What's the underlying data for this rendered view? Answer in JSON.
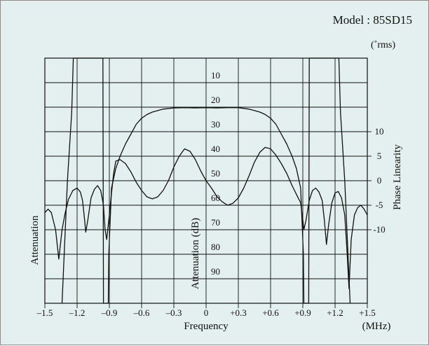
{
  "chart_data": {
    "type": "line",
    "model_label": "Model : 85SD15",
    "xlabel": "Frequency",
    "x_unit": "(MHz)",
    "ylabel_left": "Attenuation",
    "ylabel_center": "Attenuation (dB)",
    "ylabel_right": "Phase Linearity",
    "y_right_unit": "(˚rms)",
    "xlim": [
      -1.5,
      1.5
    ],
    "x_ticks": [
      -1.5,
      -1.2,
      -0.9,
      -0.6,
      -0.3,
      0,
      0.3,
      0.6,
      0.9,
      1.2,
      1.5
    ],
    "x_tick_labels": [
      "–1.5",
      "–1.2",
      "–0.9",
      "–0.6",
      "–0.3",
      "0",
      "+0.3",
      "+0.6",
      "+0.9",
      "+1.2",
      "+1.5"
    ],
    "attenuation_lim": [
      0,
      100
    ],
    "attenuation_ticks": [
      10,
      20,
      30,
      40,
      50,
      60,
      70,
      80,
      90
    ],
    "attenuation_tick_labels": [
      "10",
      "20",
      "30",
      "40",
      "50",
      "60",
      "70",
      "80",
      "90"
    ],
    "phase_lim": [
      -25,
      25
    ],
    "phase_ticks": [
      10,
      5,
      0,
      -5,
      -10
    ],
    "phase_tick_labels": [
      "10",
      "5",
      "0",
      "-5",
      "-10"
    ],
    "grid": true,
    "series": [
      {
        "role": "attenuation",
        "axis": "attenuation",
        "points": [
          [
            -1.34,
            100
          ],
          [
            -1.29,
            50
          ],
          [
            -1.25,
            22
          ],
          [
            -1.235,
            0
          ],
          [
            -0.96,
            0
          ],
          [
            -0.955,
            100
          ],
          [
            -0.91,
            100
          ],
          [
            -0.905,
            80
          ],
          [
            -0.88,
            53
          ],
          [
            -0.84,
            45
          ],
          [
            -0.8,
            40
          ],
          [
            -0.75,
            35
          ],
          [
            -0.7,
            31
          ],
          [
            -0.65,
            27
          ],
          [
            -0.6,
            24.5
          ],
          [
            -0.55,
            23
          ],
          [
            -0.5,
            22
          ],
          [
            -0.4,
            20.8
          ],
          [
            -0.3,
            20.3
          ],
          [
            -0.2,
            20.2
          ],
          [
            -0.1,
            20.3
          ],
          [
            0,
            20.2
          ],
          [
            0.1,
            20.3
          ],
          [
            0.2,
            20.2
          ],
          [
            0.3,
            20.2
          ],
          [
            0.4,
            20.8
          ],
          [
            0.5,
            22
          ],
          [
            0.55,
            23
          ],
          [
            0.6,
            24.5
          ],
          [
            0.65,
            27
          ],
          [
            0.7,
            31
          ],
          [
            0.75,
            35
          ],
          [
            0.8,
            40
          ],
          [
            0.84,
            45
          ],
          [
            0.88,
            53
          ],
          [
            0.905,
            80
          ],
          [
            0.91,
            100
          ],
          [
            0.955,
            100
          ],
          [
            0.96,
            0
          ],
          [
            1.235,
            0
          ],
          [
            1.25,
            22
          ],
          [
            1.29,
            50
          ],
          [
            1.34,
            100
          ]
        ]
      },
      {
        "role": "phase",
        "axis": "phase",
        "points": [
          [
            -1.5,
            -6.5
          ],
          [
            -1.47,
            -5.8
          ],
          [
            -1.44,
            -6.5
          ],
          [
            -1.4,
            -10
          ],
          [
            -1.37,
            -16
          ],
          [
            -1.34,
            -10
          ],
          [
            -1.31,
            -6.5
          ],
          [
            -1.28,
            -3.8
          ],
          [
            -1.24,
            -2
          ],
          [
            -1.2,
            -1.5
          ],
          [
            -1.17,
            -2.3
          ],
          [
            -1.15,
            -4
          ],
          [
            -1.13,
            -8
          ],
          [
            -1.12,
            -10.5
          ],
          [
            -1.1,
            -8
          ],
          [
            -1.07,
            -3.5
          ],
          [
            -1.04,
            -1.8
          ],
          [
            -1.01,
            -1
          ],
          [
            -0.98,
            -2
          ],
          [
            -0.955,
            -5
          ],
          [
            -0.94,
            -10
          ],
          [
            -0.925,
            -12
          ],
          [
            -0.9,
            -7
          ],
          [
            -0.88,
            -2.5
          ],
          [
            -0.86,
            1.5
          ],
          [
            -0.84,
            4
          ],
          [
            -0.8,
            4.3
          ],
          [
            -0.75,
            3.5
          ],
          [
            -0.7,
            1.8
          ],
          [
            -0.65,
            -0.3
          ],
          [
            -0.6,
            -2
          ],
          [
            -0.55,
            -3.3
          ],
          [
            -0.5,
            -3.7
          ],
          [
            -0.45,
            -3.3
          ],
          [
            -0.4,
            -2
          ],
          [
            -0.35,
            0
          ],
          [
            -0.3,
            2.8
          ],
          [
            -0.25,
            5
          ],
          [
            -0.2,
            6.5
          ],
          [
            -0.15,
            6
          ],
          [
            -0.1,
            4.3
          ],
          [
            -0.05,
            2
          ],
          [
            0,
            0
          ],
          [
            0.05,
            -1.5
          ],
          [
            0.1,
            -3.2
          ],
          [
            0.15,
            -4.3
          ],
          [
            0.2,
            -5
          ],
          [
            0.25,
            -4.6
          ],
          [
            0.3,
            -3.5
          ],
          [
            0.35,
            -1.5
          ],
          [
            0.4,
            1
          ],
          [
            0.45,
            3.8
          ],
          [
            0.5,
            5.8
          ],
          [
            0.55,
            6.8
          ],
          [
            0.6,
            6.5
          ],
          [
            0.65,
            5.2
          ],
          [
            0.7,
            3.5
          ],
          [
            0.75,
            1.5
          ],
          [
            0.8,
            -1
          ],
          [
            0.85,
            -3.2
          ],
          [
            0.88,
            -4.5
          ],
          [
            0.9,
            -8
          ],
          [
            0.91,
            -10
          ],
          [
            0.93,
            -8
          ],
          [
            0.96,
            -4
          ],
          [
            0.99,
            -2
          ],
          [
            1.02,
            -1.5
          ],
          [
            1.05,
            -2.3
          ],
          [
            1.08,
            -4
          ],
          [
            1.1,
            -8
          ],
          [
            1.12,
            -13
          ],
          [
            1.14,
            -9
          ],
          [
            1.17,
            -4.5
          ],
          [
            1.2,
            -2.5
          ],
          [
            1.23,
            -2.2
          ],
          [
            1.26,
            -3.5
          ],
          [
            1.29,
            -7
          ],
          [
            1.31,
            -14
          ],
          [
            1.33,
            -22
          ],
          [
            1.35,
            -12
          ],
          [
            1.38,
            -7
          ],
          [
            1.41,
            -5.5
          ],
          [
            1.44,
            -5
          ],
          [
            1.47,
            -5.8
          ],
          [
            1.5,
            -7
          ]
        ]
      }
    ]
  }
}
